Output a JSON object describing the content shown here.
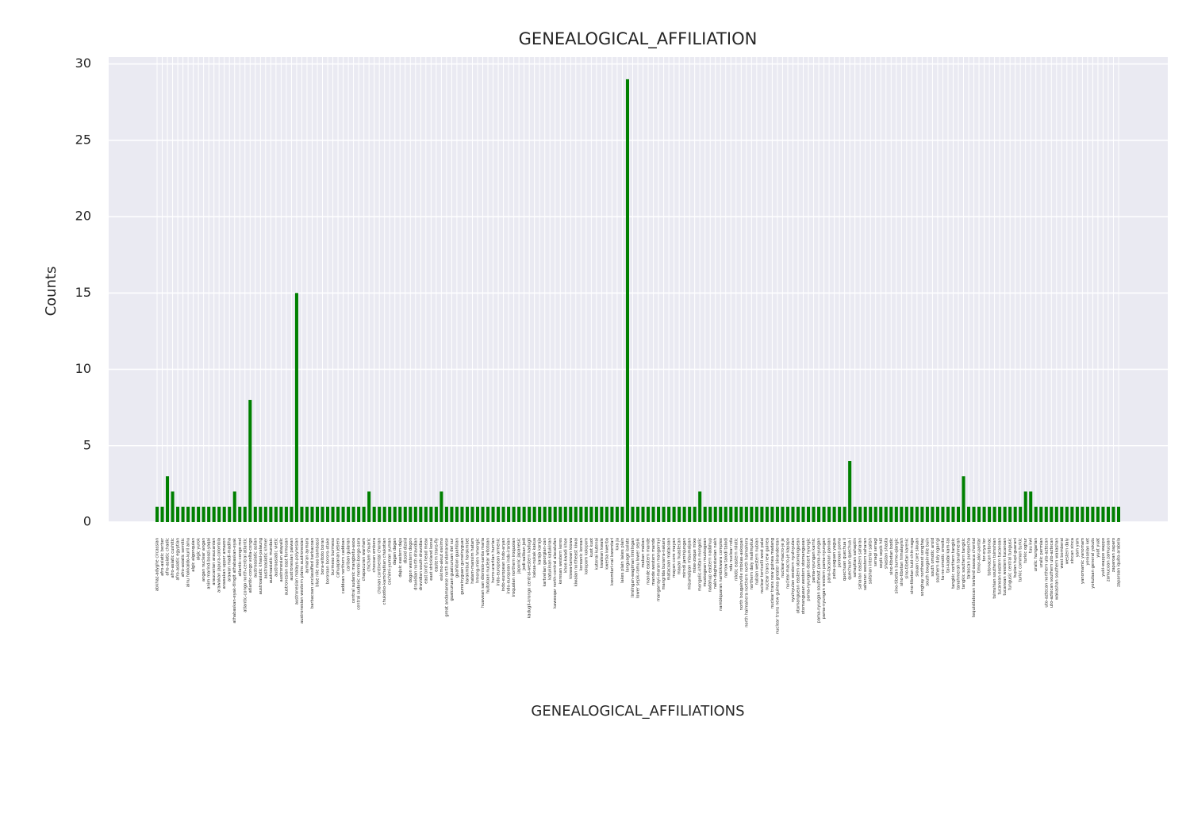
{
  "chart_data": {
    "type": "bar",
    "title": "GENEALOGICAL_AFFILIATION",
    "x_label": "GENEALOGICAL_AFFILIATIONS",
    "y_label": "Counts",
    "color": "#008000",
    "grid": true,
    "ylim": [
      0,
      30.45
    ],
    "yticks": [
      0,
      5,
      10,
      15,
      20,
      25,
      30
    ],
    "categories": [
      "abkhaz-adyghe circassian",
      "afro-asiatic berber",
      "afro-asiatic chadic",
      "afro-asiatic cushitic",
      "afro-asiatic egyptian",
      "afro-asiatic semitic",
      "ainu hokkaido-kuril ainu",
      "algic algonquian",
      "algic yurok",
      "angan nuclear angan",
      "anim marind-boazi-yaqai",
      "araucanian araucanian",
      "arawakan japura-colombia",
      "arawakan upper amazon",
      "arawan madi-madiha",
      "athabaskan-eyak-tlingit athabaskan-eyak",
      "atlantic-congo mel",
      "atlantic-congo north-central atlantic",
      "atlantic-congo volta-congo",
      "austroasiatic aslian",
      "austroasiatic khasi-palaung",
      "austroasiatic khmer",
      "austroasiatic mundaic",
      "austroasiatic vietic",
      "austronesian atayalic",
      "austronesian east formosan",
      "austronesian paiwan",
      "austronesian malayo-polynesian",
      "austronesian western plains austronesian",
      "aymaran aymara",
      "barbacoan unclassified barbacoan",
      "blue nile mao bambassi",
      "bora-witoto boran",
      "bororoan bororo-otuke",
      "burmeso burmeso",
      "cahuapanan jebero",
      "caddoan northern caddoan",
      "cariban guianan",
      "central sudanic mangbetu-asoa",
      "central sudanic membi-bongo-sara",
      "chapacuran wanham",
      "chicham shuaric",
      "chocoan embera",
      "chonan continental chonan",
      "chukotko-kamchatkan chukotian",
      "cochimi-yuman yuman",
      "dagan dagan",
      "dajuic eastern daju",
      "dizoid dizoid",
      "dogon western dogon",
      "dravidian north dravidian",
      "dravidian south dravidian",
      "east bird's head meax",
      "east strickland konai",
      "eastern trans-fly",
      "eskimo-aleut eskimo",
      "great andamanese north andamanese",
      "guaicuruan guaicuruan del sur",
      "guahiban guahiban",
      "gunwinyguan gunwinyguan",
      "harakmbut harakmbet",
      "hatam-mansim hatam",
      "hmong-mien hmongic",
      "huavean san dionisio-santa maria",
      "huitotoan nuclear witotoan",
      "hurro-urartian hurrian",
      "indo-european armenic",
      "indo-european indo-aryan",
      "indo-european indo-iranian",
      "iroquoian northern iroquoian",
      "japonic japanesic",
      "jodi-saliban jodi",
      "kadugli-krongo central-western kadugli",
      "kakua-nukak kakua",
      "karaja karaja",
      "kartvelian georgian-zan",
      "katukinan katukinan",
      "kawesqar north-central alacalufan",
      "keresan western keres",
      "khoe-kwadi khoe",
      "kiowa-tanoan kiowa",
      "kiwaian northeast kiwai",
      "koreanic korean",
      "kolopom kolopom",
      "kuot kuot",
      "kutenai kutenai",
      "kwalean kwale",
      "kwerba kwerba",
      "kwomtari-nai kwomtari",
      "kxa ju",
      "lakes plain lakes plain",
      "language isolate",
      "limilngan-wagiman limilngan",
      "lower sepik-ramu lower sepik",
      "maban maban",
      "mande eastern mande",
      "mande western mande",
      "mangarrayi-maran mangarrayi",
      "mangrida burarra-nakara",
      "matacoan matacoan",
      "mayan core mayan",
      "mayan huastecan",
      "mirndi jaminjungan",
      "misumalpan misumalpan",
      "mixe-zoque mixe",
      "mongolic-khitan mongolic",
      "muskogean muskogean",
      "nadahup eastern nadahup",
      "nakh-daghestanian nakh",
      "nambiquaran nambikwara complex",
      "narrow talodi talodi",
      "ndu nuclear ndu",
      "nilotic eastern nilotic",
      "north bougainville rotokas-askopan",
      "north halmahera northern north halmahera",
      "northern daly malimpiluk",
      "nubian western nubian",
      "nuclear torricelli west palai",
      "nuclear trans new guinea",
      "nuclear trans new guinea madang",
      "nuclear trans new guinea greater binanderean",
      "nuclear-macro-je je",
      "nuclear-macro-je kayapo",
      "nyulnyulan western nyulnyulan",
      "otomanguean eastern otomanguean",
      "otomanguean western otomanguean",
      "pama-nyungan desert nyungic",
      "pama-nyungan karnic",
      "pama-nyungan southeast pama-nyungan",
      "pama-nyungan western pama-nyungan",
      "pano-tacanan panoan",
      "peba-yaguan yagua",
      "pomoan pomo",
      "quechuan quechua ii",
      "quechuan quechua i",
      "sahaptian sahaptin",
      "saharan eastern saharan",
      "saharan western saharan",
      "salishan interior salish",
      "senagi senagi",
      "sepik sepik hill",
      "shastan shasta",
      "sino-tibetan bodic",
      "sino-tibetan burmo-qiangic",
      "sino-tibetan himalayish",
      "sino-tibetan karenic",
      "sino-tibetan kuki-chin-naga",
      "siouan core siouan",
      "songhay northwest songhay",
      "south bougainville buin",
      "south omotic aroid",
      "southern daly ngan'gi",
      "ta-ne-omotic omeito",
      "tai-kadai kam-tai",
      "tangkic northern tangkic",
      "tanahmerah tanahmerah",
      "tangkic southern tangkic",
      "tarascan purepecha",
      "tequistlatecan lowland oaxaca chontal",
      "timor-alor-pantar",
      "tor-orya tor",
      "totonacan totonac",
      "tsimshian southern tsimshian",
      "tucanoan eastern tucanoan",
      "tucanoan western tucanoan",
      "tungusic central tungusic",
      "tupian tupi-guarani",
      "turkic common turkic",
      "turkic oghur",
      "tuu kwi",
      "uralic hungarian",
      "uralic permian",
      "uto-aztecan northern uto-aztecan",
      "uto-aztecan southern uto-aztecan",
      "wakashan southern wakashan",
      "west bomberai",
      "western daly",
      "xincan xinca",
      "yam yam",
      "yanomamic yanomam",
      "yeniseian ket",
      "yokutsan general yokuts",
      "yuat yuat",
      "yuki-wappo wappo",
      "zamucoan zamucoan",
      "zaparoan zaparo",
      "zaparoan iquito-arabela"
    ],
    "values": [
      1,
      1,
      3,
      2,
      1,
      1,
      1,
      1,
      1,
      1,
      1,
      1,
      1,
      1,
      1,
      2,
      1,
      1,
      8,
      1,
      1,
      1,
      1,
      1,
      1,
      1,
      1,
      15,
      1,
      1,
      1,
      1,
      1,
      1,
      1,
      1,
      1,
      1,
      1,
      1,
      1,
      2,
      1,
      1,
      1,
      1,
      1,
      1,
      1,
      1,
      1,
      1,
      1,
      1,
      1,
      2,
      1,
      1,
      1,
      1,
      1,
      1,
      1,
      1,
      1,
      1,
      1,
      1,
      1,
      1,
      1,
      1,
      1,
      1,
      1,
      1,
      1,
      1,
      1,
      1,
      1,
      1,
      1,
      1,
      1,
      1,
      1,
      1,
      1,
      1,
      1,
      29,
      1,
      1,
      1,
      1,
      1,
      1,
      1,
      1,
      1,
      1,
      1,
      1,
      1,
      2,
      1,
      1,
      1,
      1,
      1,
      1,
      1,
      1,
      1,
      1,
      1,
      1,
      1,
      1,
      1,
      1,
      1,
      1,
      1,
      1,
      1,
      1,
      1,
      1,
      1,
      1,
      1,
      1,
      4,
      1,
      1,
      1,
      1,
      1,
      1,
      1,
      1,
      1,
      1,
      1,
      1,
      1,
      1,
      1,
      1,
      1,
      1,
      1,
      1,
      1,
      3,
      1,
      1,
      1,
      1,
      1,
      1,
      1,
      1,
      1,
      1,
      1,
      2,
      2,
      1,
      1,
      1,
      1,
      1,
      1,
      1,
      1,
      1,
      1,
      1,
      1,
      1,
      1,
      1,
      1,
      1
    ]
  }
}
